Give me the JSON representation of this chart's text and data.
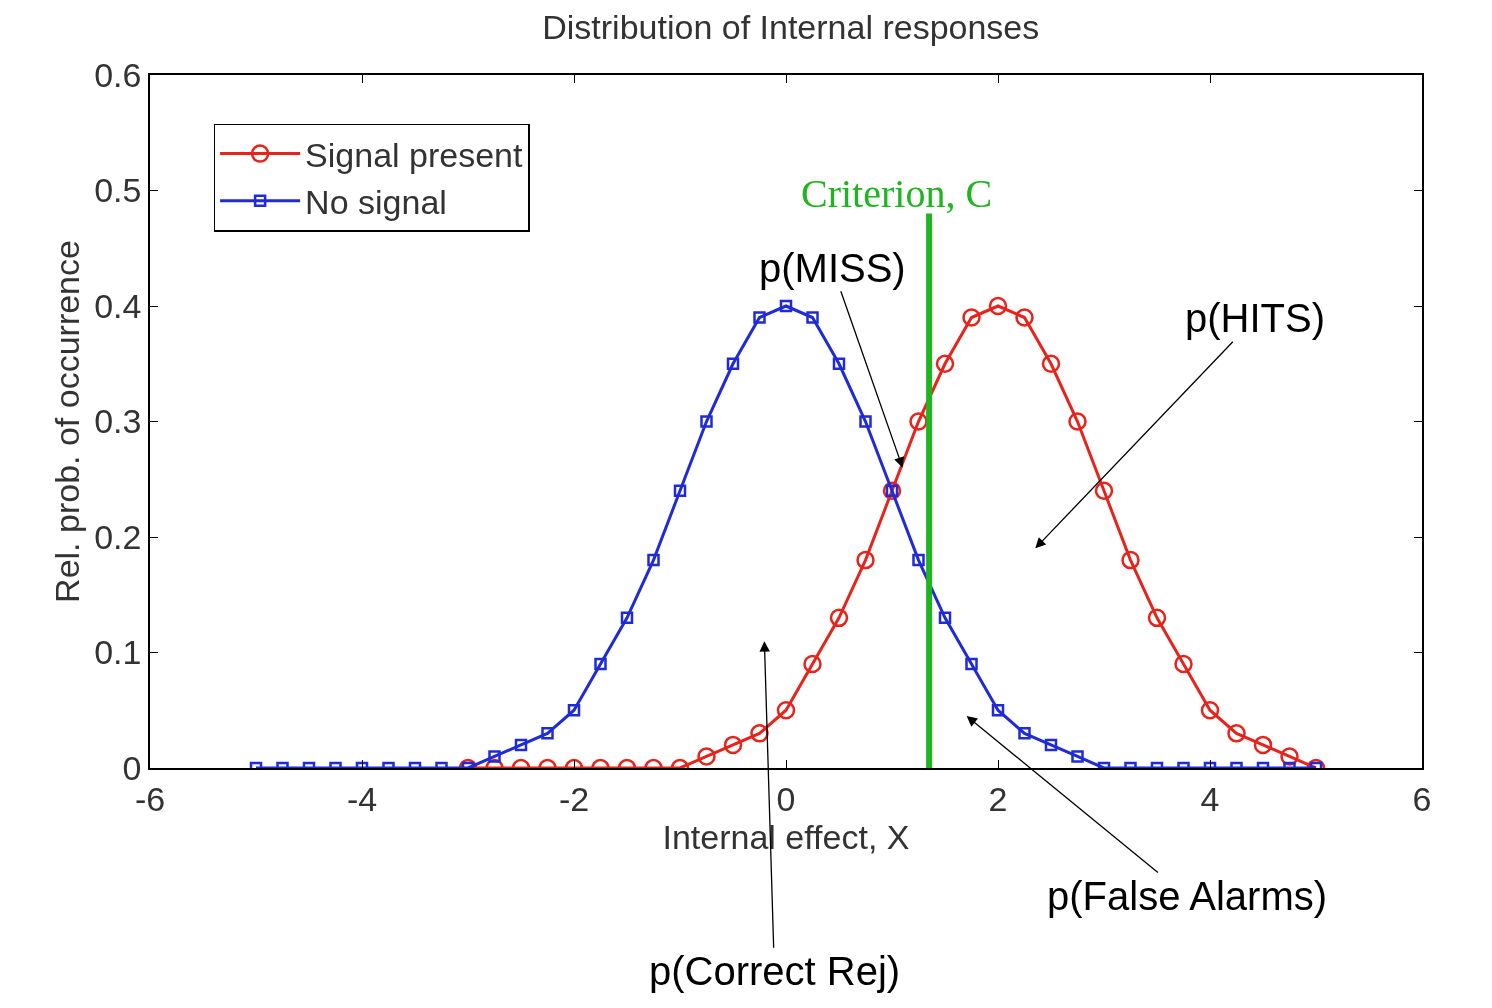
{
  "chart_data": {
    "type": "line",
    "title": "Distribution of Internal responses",
    "xlabel": "Internal effect, X",
    "ylabel": "Rel. prob. of occurrence",
    "xlim": [
      -6,
      6
    ],
    "xticks": [
      -6,
      -4,
      -2,
      0,
      2,
      4,
      6
    ],
    "ylim": [
      0,
      0.6
    ],
    "yticks": [
      0,
      0.1,
      0.2,
      0.3,
      0.4,
      0.5,
      0.6
    ],
    "legend": "top left",
    "series": [
      {
        "name": "Signal present",
        "color": "#e8231b",
        "marker": "circle",
        "x": [
          -3,
          -2.75,
          -2.5,
          -2.25,
          -2,
          -1.75,
          -1.5,
          -1.25,
          -1,
          -0.75,
          -0.5,
          -0.25,
          0,
          0.25,
          0.5,
          0.75,
          1,
          1.25,
          1.5,
          1.75,
          2,
          2.25,
          2.5,
          2.75,
          3,
          3.25,
          3.5,
          3.75,
          4,
          4.25,
          4.5,
          4.75,
          5
        ],
        "values": [
          0,
          0,
          0,
          0,
          0,
          0,
          0,
          0,
          0,
          0.01,
          0.02,
          0.03,
          0.05,
          0.09,
          0.13,
          0.18,
          0.24,
          0.3,
          0.35,
          0.39,
          0.4,
          0.39,
          0.35,
          0.3,
          0.24,
          0.18,
          0.13,
          0.09,
          0.05,
          0.03,
          0.02,
          0.01,
          0
        ]
      },
      {
        "name": "No signal",
        "color": "#1f2bd6",
        "marker": "square",
        "x": [
          -5,
          -4.75,
          -4.5,
          -4.25,
          -4,
          -3.75,
          -3.5,
          -3.25,
          -3,
          -2.75,
          -2.5,
          -2.25,
          -2,
          -1.75,
          -1.5,
          -1.25,
          -1,
          -0.75,
          -0.5,
          -0.25,
          0,
          0.25,
          0.5,
          0.75,
          1,
          1.25,
          1.5,
          1.75,
          2,
          2.25,
          2.5,
          2.75,
          3,
          3.25,
          3.5,
          3.75,
          4,
          4.25,
          4.5,
          4.75,
          5
        ],
        "values": [
          0,
          0,
          0,
          0,
          0,
          0,
          0,
          0,
          0,
          0.01,
          0.02,
          0.03,
          0.05,
          0.09,
          0.13,
          0.18,
          0.24,
          0.3,
          0.35,
          0.39,
          0.4,
          0.39,
          0.35,
          0.3,
          0.24,
          0.18,
          0.13,
          0.09,
          0.05,
          0.03,
          0.02,
          0.01,
          0,
          0,
          0,
          0,
          0,
          0,
          0,
          0,
          0
        ]
      }
    ],
    "ref_lines": [
      {
        "axis": "x",
        "value": 1.35,
        "label": "Criterion, C",
        "color": "#1fb51f",
        "line_style": "solid"
      }
    ],
    "annotations": [
      {
        "text": "p(MISS)",
        "x": 1.1,
        "y": 0.26
      },
      "p(HITS)",
      "p(False Alarms)",
      "p(Correct Rej)"
    ]
  }
}
